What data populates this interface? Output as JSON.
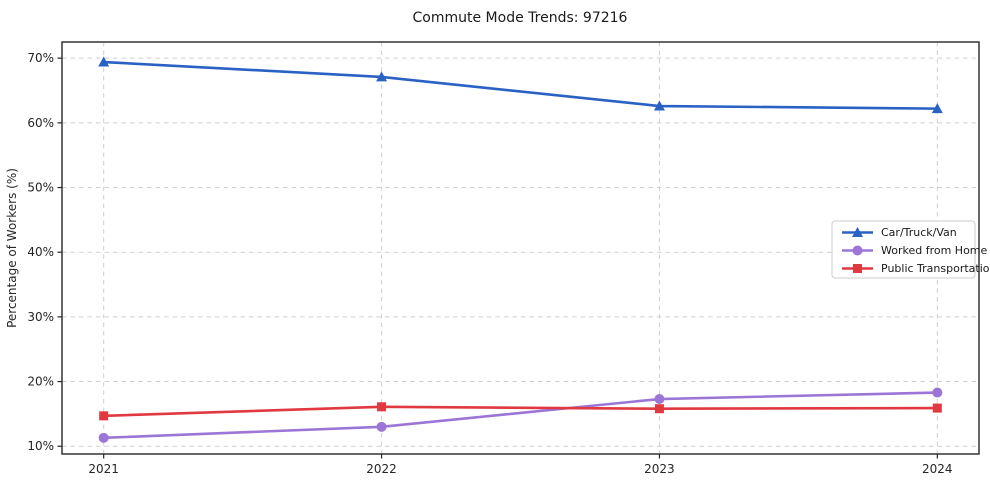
{
  "chart_data": {
    "type": "line",
    "title": "Commute Mode Trends: 97216",
    "xlabel": "",
    "ylabel": "Percentage of Workers (%)",
    "x": [
      2021,
      2022,
      2023,
      2024
    ],
    "x_tick_labels": [
      "2021",
      "2022",
      "2023",
      "2024"
    ],
    "y_ticks": [
      10,
      20,
      30,
      40,
      50,
      60,
      70
    ],
    "y_tick_labels": [
      "10%",
      "20%",
      "30%",
      "40%",
      "50%",
      "60%",
      "70%"
    ],
    "xlim": [
      2020.85,
      2024.15
    ],
    "ylim": [
      8.8,
      72.5
    ],
    "grid": true,
    "grid_style": "dashed",
    "legend_position": "center right",
    "series": [
      {
        "name": "Car/Truck/Van",
        "marker": "triangle",
        "color": "#2a62c4",
        "values": [
          69.4,
          67.1,
          62.6,
          62.2
        ]
      },
      {
        "name": "Worked from Home",
        "marker": "circle",
        "color": "#9b76d6",
        "values": [
          11.3,
          13.0,
          17.3,
          18.3
        ]
      },
      {
        "name": "Public Transportation",
        "marker": "square",
        "color": "#e0393f",
        "values": [
          14.7,
          16.1,
          15.8,
          15.9
        ]
      }
    ],
    "colors": {
      "background": "#ffffff",
      "grid": "#cfcfcf",
      "spine": "#262626",
      "text": "#1a1a1a",
      "legend_border": "#cccccc"
    }
  }
}
